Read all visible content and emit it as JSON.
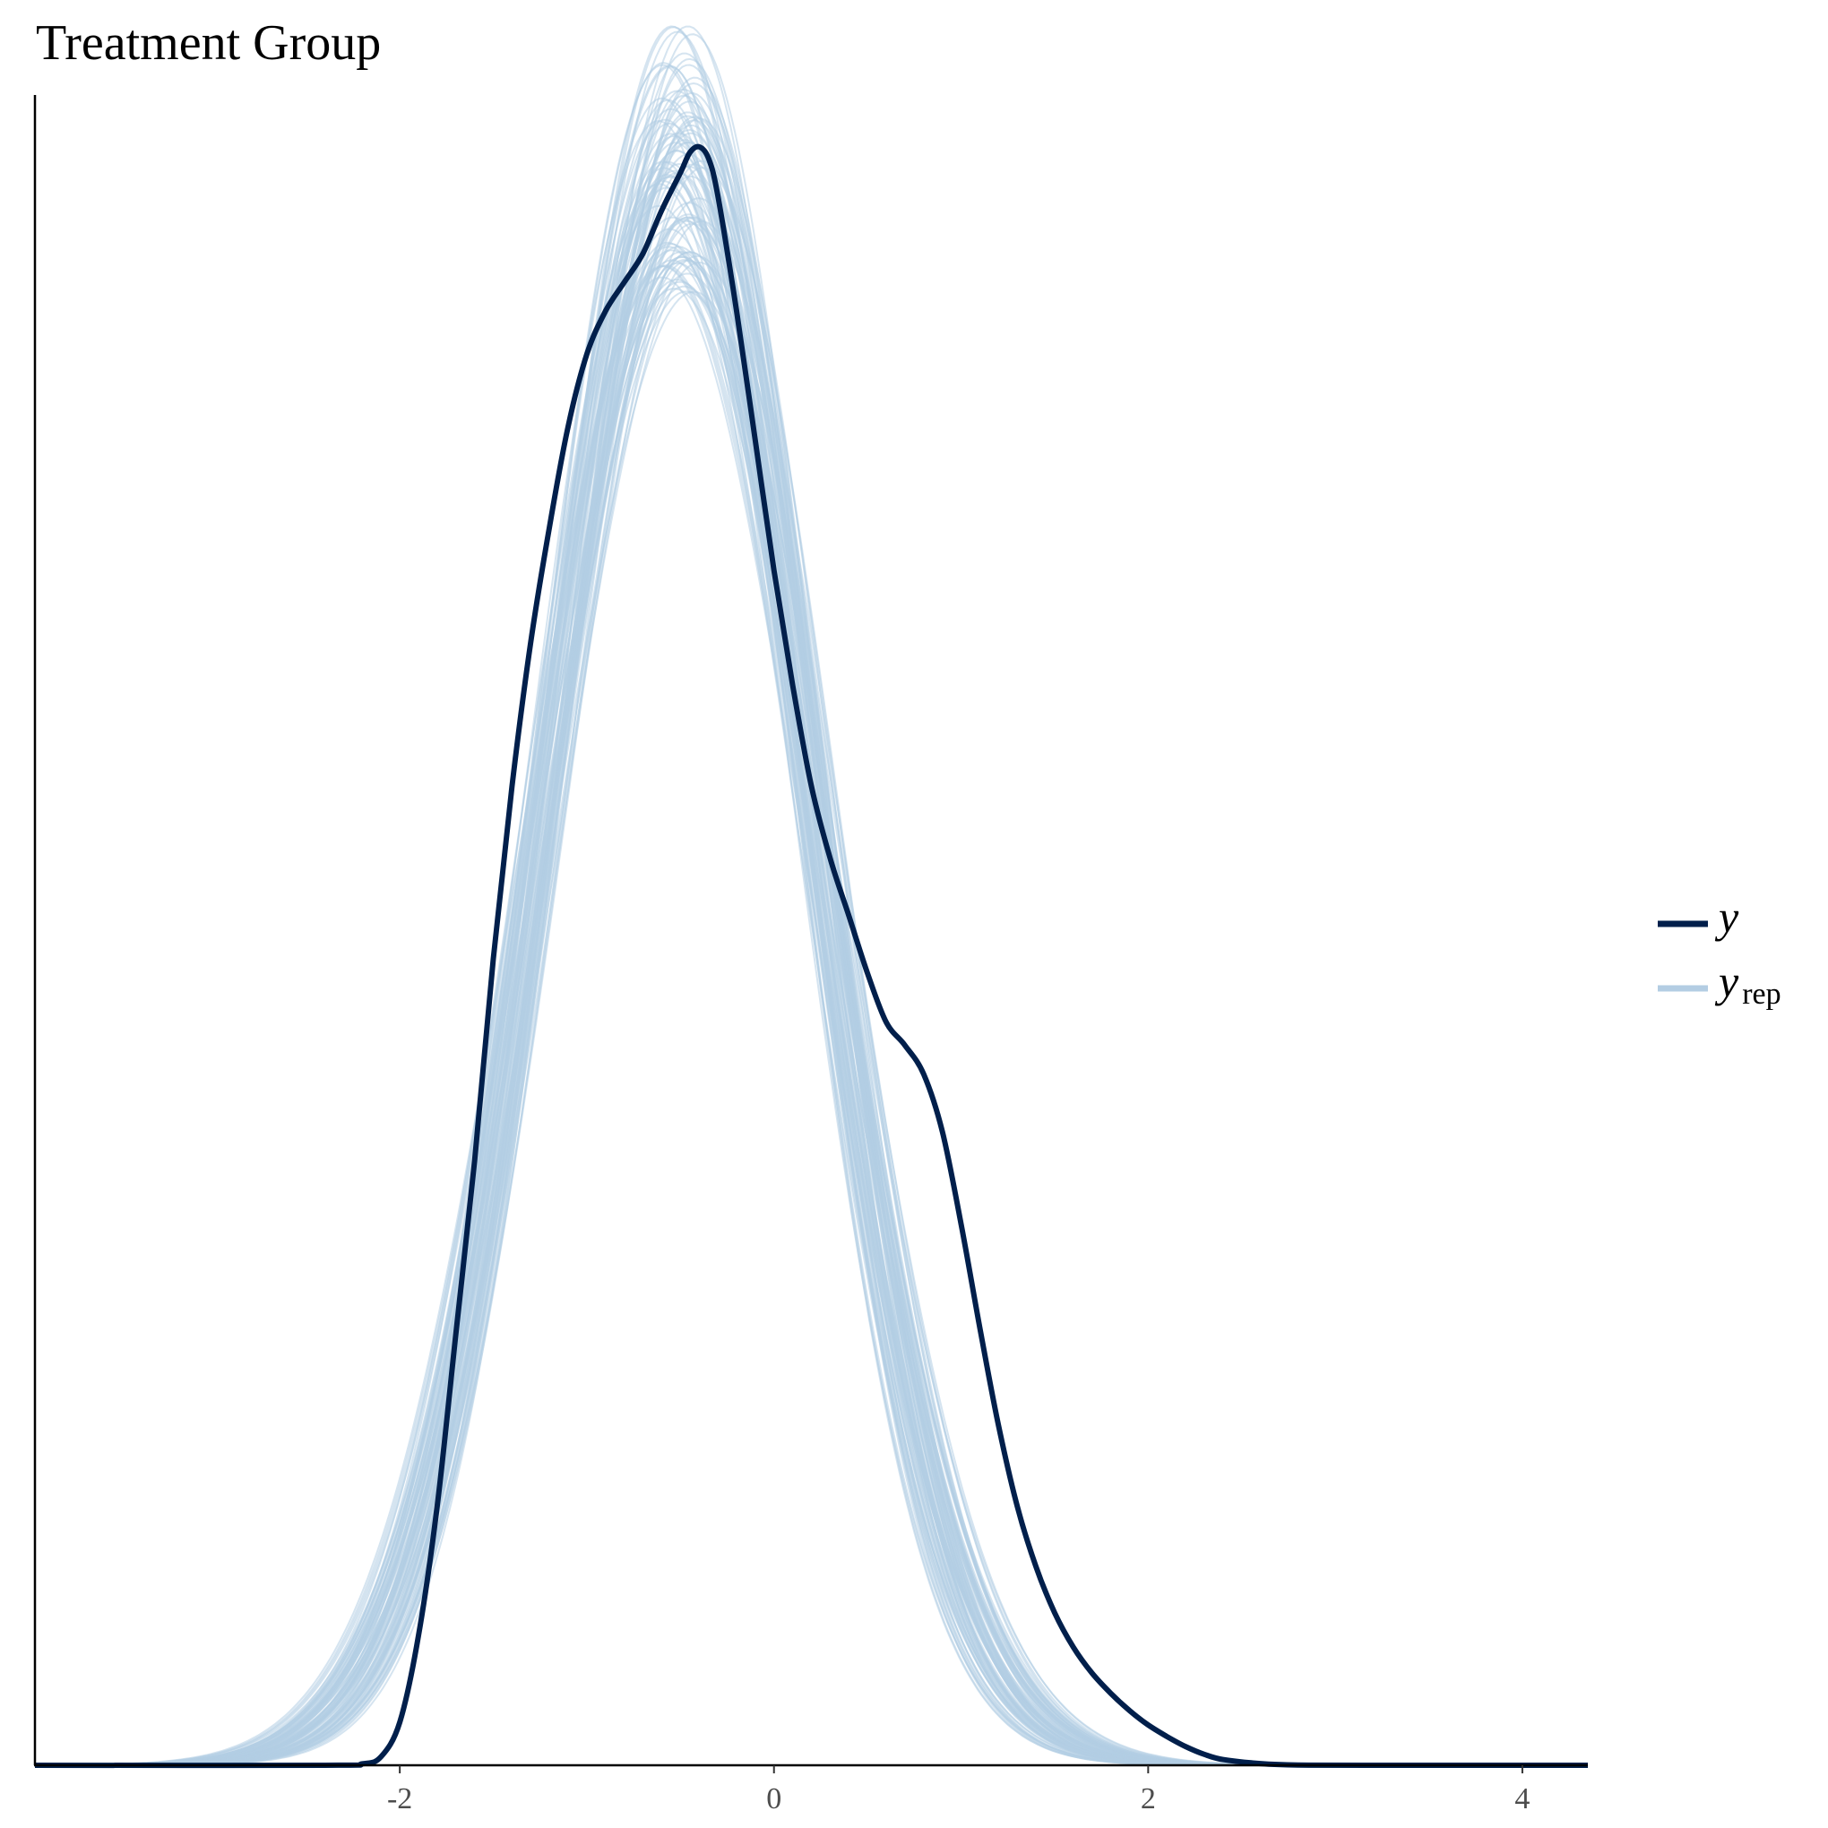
{
  "chart_data": {
    "type": "line",
    "title": "Treatment Group",
    "xlabel": "",
    "ylabel": "",
    "xlim": [
      -3.95,
      4.35
    ],
    "ylim": [
      0,
      0.58
    ],
    "x_ticks": [
      -2,
      0,
      2,
      4
    ],
    "x_tick_labels": [
      "-2",
      "0",
      "2",
      "4"
    ],
    "grid": false,
    "legend_position": "right",
    "legend": [
      {
        "key": "y",
        "label": "y",
        "subscript": "",
        "color": "#011f4b"
      },
      {
        "key": "yrep",
        "label": "y",
        "subscript": "rep",
        "color": "#b3cde3"
      }
    ],
    "series": [
      {
        "name": "y",
        "color": "#011f4b",
        "x": [
          -3.95,
          -2.4,
          -2.2,
          -2.1,
          -2.0,
          -1.9,
          -1.8,
          -1.7,
          -1.6,
          -1.5,
          -1.4,
          -1.3,
          -1.2,
          -1.1,
          -1.0,
          -0.9,
          -0.8,
          -0.7,
          -0.6,
          -0.5,
          -0.45,
          -0.4,
          -0.35,
          -0.3,
          -0.2,
          -0.1,
          0.0,
          0.1,
          0.2,
          0.3,
          0.4,
          0.5,
          0.6,
          0.7,
          0.8,
          0.9,
          1.0,
          1.1,
          1.2,
          1.3,
          1.4,
          1.5,
          1.6,
          1.7,
          1.8,
          1.9,
          2.0,
          2.1,
          2.2,
          2.3,
          2.4,
          2.6,
          2.8,
          3.2,
          4.35
        ],
        "values": [
          0.0,
          0.0,
          0.0005,
          0.003,
          0.015,
          0.045,
          0.09,
          0.15,
          0.21,
          0.28,
          0.34,
          0.39,
          0.43,
          0.465,
          0.49,
          0.505,
          0.515,
          0.525,
          0.54,
          0.553,
          0.56,
          0.562,
          0.558,
          0.545,
          0.505,
          0.46,
          0.415,
          0.375,
          0.34,
          0.315,
          0.295,
          0.275,
          0.258,
          0.25,
          0.24,
          0.22,
          0.188,
          0.152,
          0.118,
          0.09,
          0.069,
          0.053,
          0.041,
          0.032,
          0.025,
          0.019,
          0.014,
          0.01,
          0.0065,
          0.0038,
          0.002,
          0.0006,
          0.0001,
          0.0,
          0.0
        ]
      },
      {
        "name": "yrep",
        "color": "#b3cde3",
        "distribution": "normal",
        "mean_range": [
          -0.62,
          -0.38
        ],
        "sd_range": [
          0.66,
          0.78
        ],
        "draws": 100
      }
    ]
  }
}
